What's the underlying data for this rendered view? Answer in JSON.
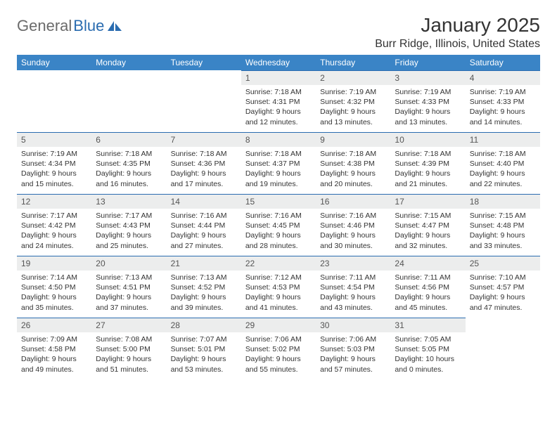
{
  "logo": {
    "text1": "General",
    "text2": "Blue"
  },
  "title": "January 2025",
  "location": "Burr Ridge, Illinois, United States",
  "colors": {
    "header_bg": "#3a84c6",
    "header_text": "#ffffff",
    "daynum_bg": "#eceded",
    "daynum_border": "#2a6cb0",
    "body_text": "#333333",
    "logo_gray": "#6b6b6b",
    "logo_blue": "#2a6cb0",
    "page_bg": "#ffffff"
  },
  "typography": {
    "title_fontsize": 28,
    "location_fontsize": 16,
    "th_fontsize": 12,
    "daynum_fontsize": 12,
    "details_fontsize": 10.5,
    "logo_fontsize": 22
  },
  "dayNames": [
    "Sunday",
    "Monday",
    "Tuesday",
    "Wednesday",
    "Thursday",
    "Friday",
    "Saturday"
  ],
  "weeks": [
    [
      null,
      null,
      null,
      {
        "n": "1",
        "sunrise": "7:18 AM",
        "sunset": "4:31 PM",
        "dayh": "9",
        "daym": "12"
      },
      {
        "n": "2",
        "sunrise": "7:19 AM",
        "sunset": "4:32 PM",
        "dayh": "9",
        "daym": "13"
      },
      {
        "n": "3",
        "sunrise": "7:19 AM",
        "sunset": "4:33 PM",
        "dayh": "9",
        "daym": "13"
      },
      {
        "n": "4",
        "sunrise": "7:19 AM",
        "sunset": "4:33 PM",
        "dayh": "9",
        "daym": "14"
      }
    ],
    [
      {
        "n": "5",
        "sunrise": "7:19 AM",
        "sunset": "4:34 PM",
        "dayh": "9",
        "daym": "15"
      },
      {
        "n": "6",
        "sunrise": "7:18 AM",
        "sunset": "4:35 PM",
        "dayh": "9",
        "daym": "16"
      },
      {
        "n": "7",
        "sunrise": "7:18 AM",
        "sunset": "4:36 PM",
        "dayh": "9",
        "daym": "17"
      },
      {
        "n": "8",
        "sunrise": "7:18 AM",
        "sunset": "4:37 PM",
        "dayh": "9",
        "daym": "19"
      },
      {
        "n": "9",
        "sunrise": "7:18 AM",
        "sunset": "4:38 PM",
        "dayh": "9",
        "daym": "20"
      },
      {
        "n": "10",
        "sunrise": "7:18 AM",
        "sunset": "4:39 PM",
        "dayh": "9",
        "daym": "21"
      },
      {
        "n": "11",
        "sunrise": "7:18 AM",
        "sunset": "4:40 PM",
        "dayh": "9",
        "daym": "22"
      }
    ],
    [
      {
        "n": "12",
        "sunrise": "7:17 AM",
        "sunset": "4:42 PM",
        "dayh": "9",
        "daym": "24"
      },
      {
        "n": "13",
        "sunrise": "7:17 AM",
        "sunset": "4:43 PM",
        "dayh": "9",
        "daym": "25"
      },
      {
        "n": "14",
        "sunrise": "7:16 AM",
        "sunset": "4:44 PM",
        "dayh": "9",
        "daym": "27"
      },
      {
        "n": "15",
        "sunrise": "7:16 AM",
        "sunset": "4:45 PM",
        "dayh": "9",
        "daym": "28"
      },
      {
        "n": "16",
        "sunrise": "7:16 AM",
        "sunset": "4:46 PM",
        "dayh": "9",
        "daym": "30"
      },
      {
        "n": "17",
        "sunrise": "7:15 AM",
        "sunset": "4:47 PM",
        "dayh": "9",
        "daym": "32"
      },
      {
        "n": "18",
        "sunrise": "7:15 AM",
        "sunset": "4:48 PM",
        "dayh": "9",
        "daym": "33"
      }
    ],
    [
      {
        "n": "19",
        "sunrise": "7:14 AM",
        "sunset": "4:50 PM",
        "dayh": "9",
        "daym": "35"
      },
      {
        "n": "20",
        "sunrise": "7:13 AM",
        "sunset": "4:51 PM",
        "dayh": "9",
        "daym": "37"
      },
      {
        "n": "21",
        "sunrise": "7:13 AM",
        "sunset": "4:52 PM",
        "dayh": "9",
        "daym": "39"
      },
      {
        "n": "22",
        "sunrise": "7:12 AM",
        "sunset": "4:53 PM",
        "dayh": "9",
        "daym": "41"
      },
      {
        "n": "23",
        "sunrise": "7:11 AM",
        "sunset": "4:54 PM",
        "dayh": "9",
        "daym": "43"
      },
      {
        "n": "24",
        "sunrise": "7:11 AM",
        "sunset": "4:56 PM",
        "dayh": "9",
        "daym": "45"
      },
      {
        "n": "25",
        "sunrise": "7:10 AM",
        "sunset": "4:57 PM",
        "dayh": "9",
        "daym": "47"
      }
    ],
    [
      {
        "n": "26",
        "sunrise": "7:09 AM",
        "sunset": "4:58 PM",
        "dayh": "9",
        "daym": "49"
      },
      {
        "n": "27",
        "sunrise": "7:08 AM",
        "sunset": "5:00 PM",
        "dayh": "9",
        "daym": "51"
      },
      {
        "n": "28",
        "sunrise": "7:07 AM",
        "sunset": "5:01 PM",
        "dayh": "9",
        "daym": "53"
      },
      {
        "n": "29",
        "sunrise": "7:06 AM",
        "sunset": "5:02 PM",
        "dayh": "9",
        "daym": "55"
      },
      {
        "n": "30",
        "sunrise": "7:06 AM",
        "sunset": "5:03 PM",
        "dayh": "9",
        "daym": "57"
      },
      {
        "n": "31",
        "sunrise": "7:05 AM",
        "sunset": "5:05 PM",
        "dayh": "10",
        "daym": "0"
      },
      null
    ]
  ],
  "labels": {
    "sunrise": "Sunrise:",
    "sunset": "Sunset:",
    "daylight": "Daylight:",
    "hours": "hours",
    "and": "and",
    "minutes": "minutes."
  }
}
